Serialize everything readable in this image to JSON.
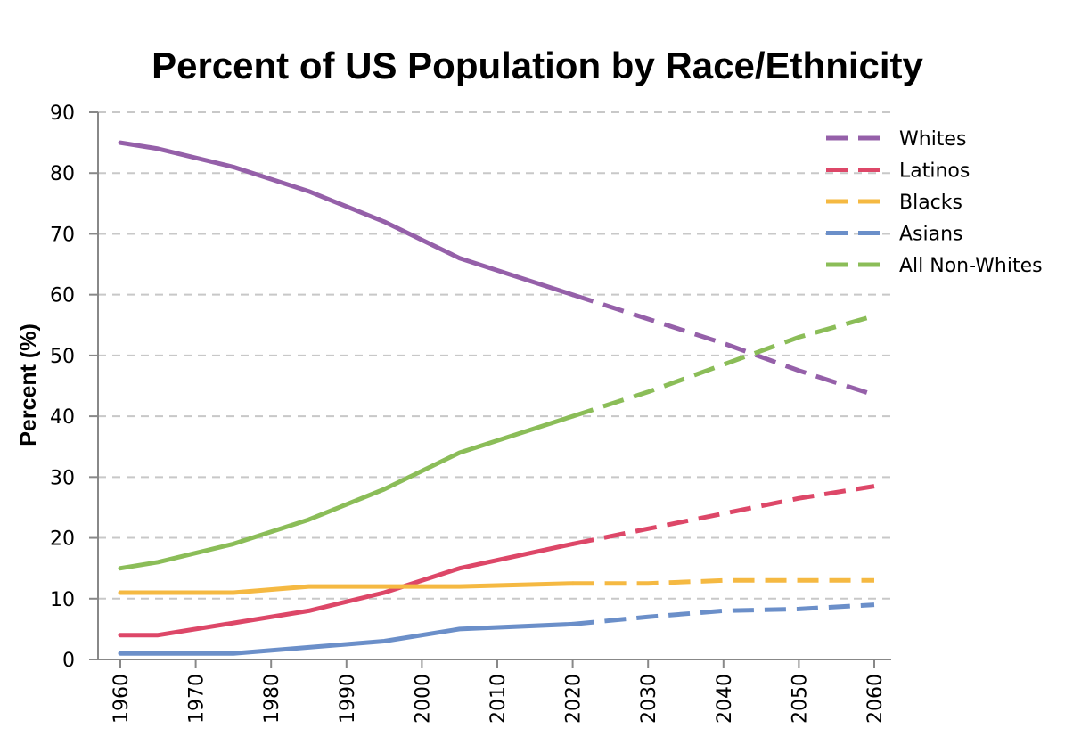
{
  "chart_data": {
    "type": "line",
    "title": "Percent of US Population by Race/Ethnicity",
    "xlabel": "",
    "ylabel": "Percent (%)",
    "xlim": [
      1960,
      2060
    ],
    "ylim": [
      0,
      90
    ],
    "x_ticks": [
      "1960",
      "1970",
      "1980",
      "1990",
      "2000",
      "2010",
      "2020",
      "2030",
      "2040",
      "2050",
      "2060"
    ],
    "y_ticks": [
      "0",
      "10",
      "20",
      "30",
      "40",
      "50",
      "60",
      "70",
      "80",
      "90"
    ],
    "grid": "horizontal dashed",
    "legend_position": "top-right",
    "projection_start": 2020,
    "series": [
      {
        "name": "Whites",
        "color": "#9560a9",
        "x": [
          1960,
          1965,
          1975,
          1985,
          1995,
          2005,
          2020,
          2030,
          2040,
          2050,
          2060
        ],
        "values": [
          85,
          84,
          81,
          77,
          72,
          66,
          60,
          56,
          52,
          47.5,
          43.5
        ]
      },
      {
        "name": "Latinos",
        "color": "#dd4768",
        "x": [
          1960,
          1965,
          1975,
          1985,
          1995,
          2005,
          2020,
          2030,
          2040,
          2050,
          2060
        ],
        "values": [
          4,
          4,
          6,
          8,
          11,
          15,
          19,
          21.5,
          24,
          26.5,
          28.5
        ]
      },
      {
        "name": "Blacks",
        "color": "#f5b942",
        "x": [
          1960,
          1965,
          1975,
          1985,
          1995,
          2005,
          2020,
          2030,
          2040,
          2050,
          2060
        ],
        "values": [
          11,
          11,
          11,
          12,
          12,
          12,
          12.5,
          12.5,
          13,
          13,
          13
        ]
      },
      {
        "name": "Asians",
        "color": "#6b8fc9",
        "x": [
          1960,
          1965,
          1975,
          1985,
          1995,
          2005,
          2020,
          2030,
          2040,
          2050,
          2060
        ],
        "values": [
          1,
          1,
          1,
          2,
          3,
          5,
          5.8,
          7,
          8,
          8.3,
          9
        ]
      },
      {
        "name": "All Non-Whites",
        "color": "#8bbd58",
        "x": [
          1960,
          1965,
          1975,
          1985,
          1995,
          2005,
          2020,
          2030,
          2040,
          2050,
          2060
        ],
        "values": [
          15,
          16,
          19,
          23,
          28,
          34,
          40,
          44,
          48.5,
          53,
          56.5
        ]
      }
    ]
  }
}
